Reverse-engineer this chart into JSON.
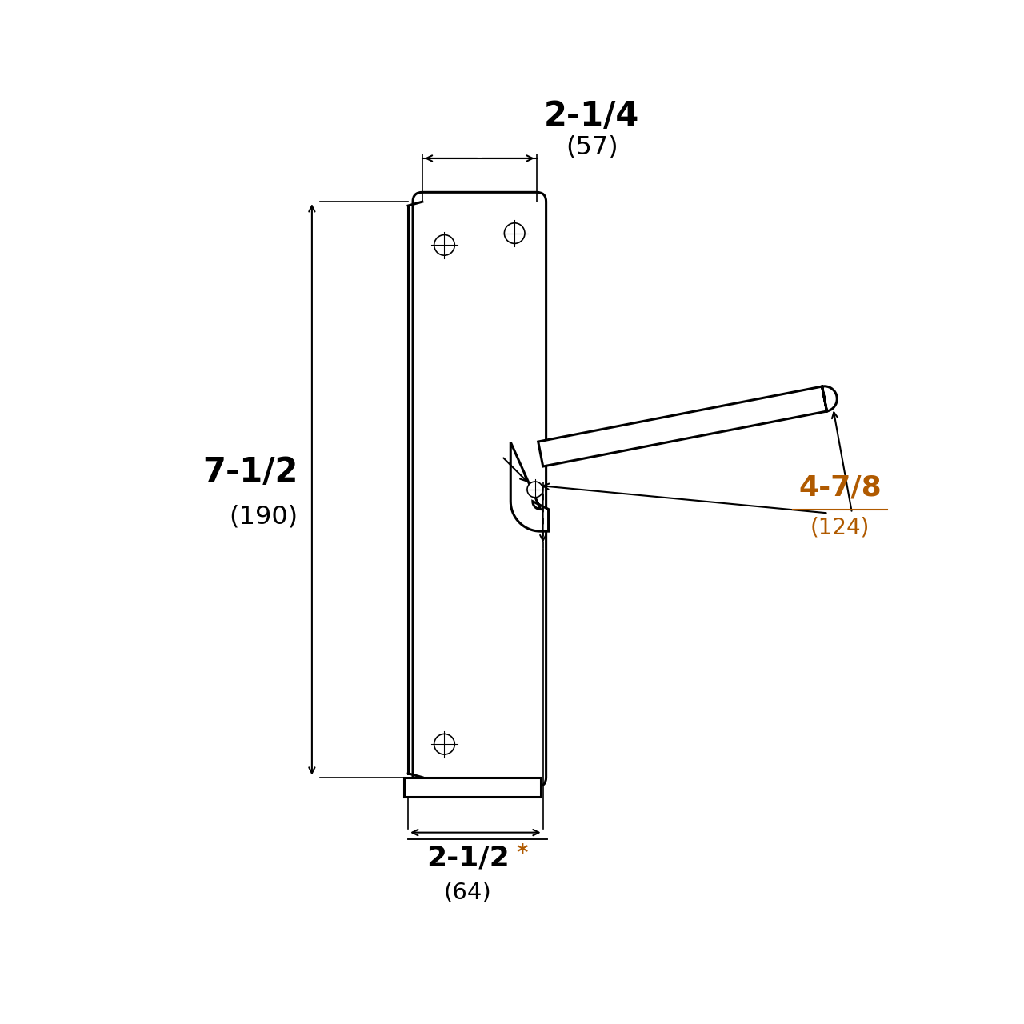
{
  "bg_color": "#ffffff",
  "line_color": "#000000",
  "dim_color_black": "#000000",
  "dim_color_orange": "#b05a00",
  "lw_main": 2.2,
  "lw_thin": 1.2,
  "lw_dim": 1.5,
  "dim_width_label": "2-1/4",
  "dim_width_sub": "(57)",
  "dim_height_label": "7-1/2",
  "dim_height_sub": "(190)",
  "dim_lever_label": "4-7/8",
  "dim_lever_sub": "(124)",
  "dim_bottom_label": "2-1/2",
  "dim_bottom_star": "*",
  "dim_bottom_sub": "(64)"
}
